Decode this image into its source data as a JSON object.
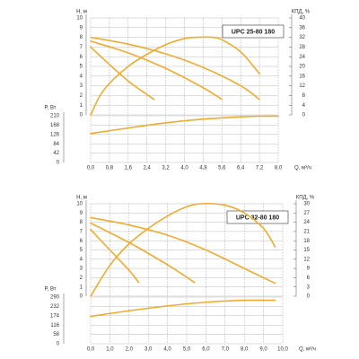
{
  "chart_data": [
    {
      "type": "line",
      "title": "UPC 25-80 180",
      "xlabel": "Q, м³/ч",
      "ylabel": "H, м",
      "y2label": "КПД, %",
      "y3label": "P, Вт",
      "xlim": [
        0,
        8
      ],
      "xticks": [
        {
          "value": 0,
          "label": "0,0"
        },
        {
          "value": 0.8,
          "label": "0,8"
        },
        {
          "value": 1.6,
          "label": "1,6"
        },
        {
          "value": 2.4,
          "label": "2,4"
        },
        {
          "value": 3.2,
          "label": "3,2"
        },
        {
          "value": 4.0,
          "label": "4,0"
        },
        {
          "value": 4.8,
          "label": "4,8"
        },
        {
          "value": 5.6,
          "label": "5,6"
        },
        {
          "value": 6.4,
          "label": "6,4"
        },
        {
          "value": 7.2,
          "label": "7,2"
        },
        {
          "value": 8.0,
          "label": "8,0"
        }
      ],
      "ylim": [
        0,
        10
      ],
      "yticks": [
        0,
        1,
        2,
        3,
        4,
        5,
        6,
        7,
        8,
        9,
        10
      ],
      "y2lim": [
        0,
        40
      ],
      "y2ticks": [
        0,
        4,
        8,
        12,
        16,
        20,
        24,
        28,
        32,
        36,
        40
      ],
      "y3lim": [
        0,
        210
      ],
      "y3ticks": [
        0,
        42,
        84,
        126,
        168,
        210
      ],
      "grid": true,
      "color": "#f0ab2e",
      "series": [
        {
          "axis": "y",
          "x": [
            0,
            1.6,
            3.2,
            4.8,
            6.4,
            7.2
          ],
          "values": [
            8.0,
            7.3,
            6.3,
            4.9,
            3.0,
            1.6
          ]
        },
        {
          "axis": "y",
          "x": [
            0,
            1.6,
            3.2,
            4.8,
            5.6
          ],
          "values": [
            7.6,
            6.4,
            4.8,
            2.8,
            1.6
          ]
        },
        {
          "axis": "y",
          "x": [
            0,
            0.8,
            1.6,
            2.4,
            2.7
          ],
          "values": [
            7.0,
            5.2,
            3.5,
            2.1,
            1.6
          ]
        },
        {
          "axis": "y2",
          "x": [
            0,
            0.4,
            0.8,
            1.6,
            2.4,
            3.2,
            4.0,
            4.5,
            5.2,
            5.6,
            6.4,
            7.2
          ],
          "values": [
            0,
            8,
            13,
            20,
            25,
            29,
            31.5,
            32,
            32,
            31,
            26,
            17
          ]
        },
        {
          "axis": "y3",
          "x": [
            0,
            1.6,
            3.2,
            4.8,
            6.4,
            7.2,
            8.0
          ],
          "values": [
            130,
            155,
            178,
            195,
            205,
            208,
            208
          ]
        }
      ]
    },
    {
      "type": "line",
      "title": "UPC 32-80 180",
      "xlabel": "Q, м³/ч",
      "ylabel": "H, м",
      "y2label": "КПД, %",
      "y3label": "P, Вт",
      "xlim": [
        0,
        10
      ],
      "xticks": [
        {
          "value": 0,
          "label": "0,0"
        },
        {
          "value": 1,
          "label": "1,0"
        },
        {
          "value": 2,
          "label": "2,0"
        },
        {
          "value": 3,
          "label": "3,0"
        },
        {
          "value": 4,
          "label": "4,0"
        },
        {
          "value": 5,
          "label": "5,0"
        },
        {
          "value": 6,
          "label": "6,0"
        },
        {
          "value": 7,
          "label": "7,0"
        },
        {
          "value": 8,
          "label": "8,0"
        },
        {
          "value": 9,
          "label": "9,0"
        },
        {
          "value": 10,
          "label": "10,0"
        }
      ],
      "ylim": [
        0,
        10
      ],
      "yticks": [
        0,
        1,
        2,
        3,
        4,
        5,
        6,
        7,
        8,
        9,
        10
      ],
      "y2lim": [
        0,
        30
      ],
      "y2ticks": [
        0,
        3,
        6,
        9,
        12,
        15,
        18,
        21,
        24,
        27,
        30
      ],
      "y3lim": [
        0,
        290
      ],
      "y3ticks": [
        0,
        58,
        116,
        174,
        232,
        290
      ],
      "grid": true,
      "color": "#f0ab2e",
      "series": [
        {
          "axis": "y",
          "x": [
            0,
            2,
            4,
            6,
            8,
            9.6
          ],
          "values": [
            8.5,
            7.7,
            6.6,
            5.0,
            3.0,
            1.4
          ]
        },
        {
          "axis": "y",
          "x": [
            0,
            2,
            4,
            5.4
          ],
          "values": [
            7.9,
            5.8,
            3.4,
            1.5
          ]
        },
        {
          "axis": "y",
          "x": [
            0,
            1,
            2,
            2.5
          ],
          "values": [
            7.2,
            5.0,
            2.8,
            1.5
          ]
        },
        {
          "axis": "y2",
          "x": [
            0,
            1,
            2,
            3,
            4,
            5,
            5.8,
            7,
            8,
            9,
            9.6
          ],
          "values": [
            0,
            10,
            17,
            22,
            26,
            29,
            30,
            29.5,
            27,
            22,
            16
          ]
        },
        {
          "axis": "y3",
          "x": [
            0,
            2,
            4,
            6,
            8,
            9.6
          ],
          "values": [
            170,
            205,
            235,
            258,
            270,
            270
          ]
        }
      ]
    }
  ]
}
